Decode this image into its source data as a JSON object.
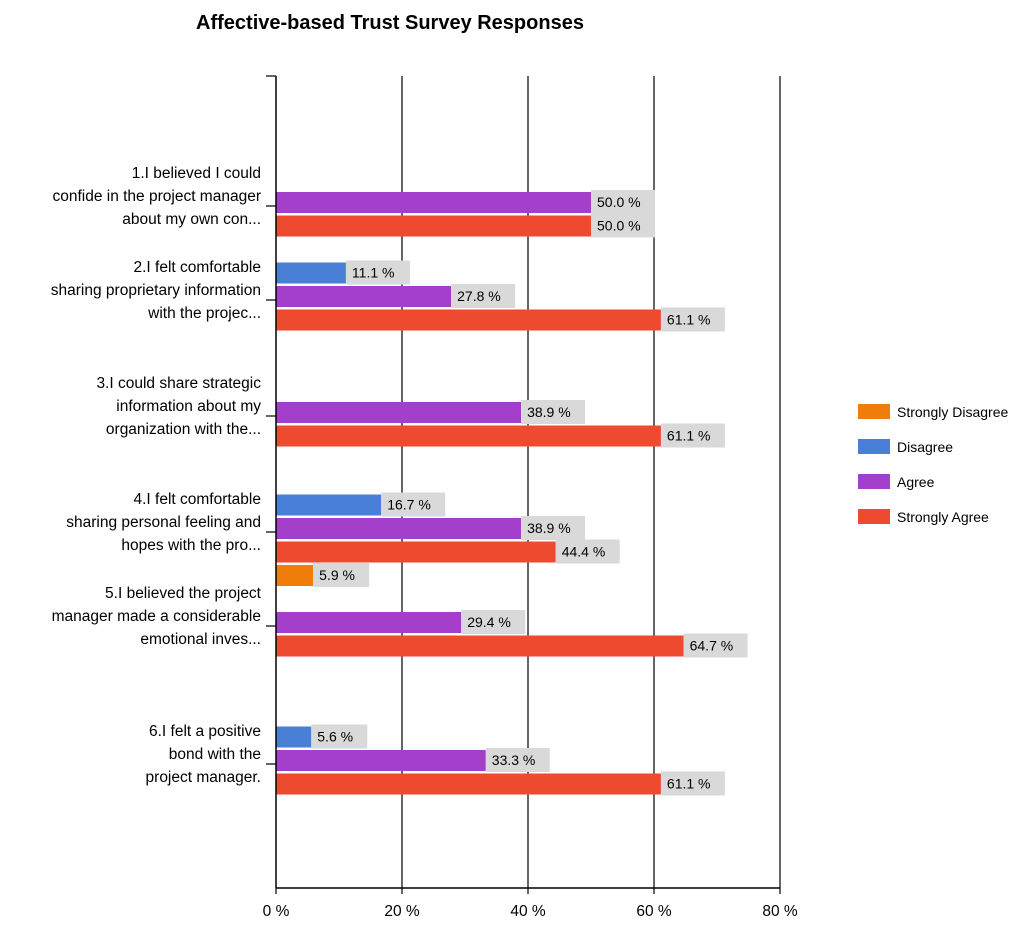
{
  "chart_data": {
    "type": "bar",
    "orientation": "horizontal",
    "title": "Affective-based Trust Survey Responses",
    "xlabel": "",
    "ylabel": "",
    "xlim": [
      0,
      80
    ],
    "x_ticks": [
      "0 %",
      "20 %",
      "40 %",
      "60 %",
      "80 %"
    ],
    "grid": true,
    "legend_position": "right",
    "categories": [
      [
        "1.I believed I could",
        "confide in the project manager",
        "about my own con..."
      ],
      [
        "2.I felt comfortable",
        "sharing proprietary information",
        "with the projec..."
      ],
      [
        "3.I could share strategic",
        "information about my",
        "organization with the..."
      ],
      [
        "4.I felt comfortable",
        "sharing personal feeling and",
        "hopes with the pro..."
      ],
      [
        "5.I believed the project",
        "manager made a considerable",
        "emotional inves..."
      ],
      [
        "6.I felt a positive",
        "bond with the",
        "project manager."
      ]
    ],
    "series": [
      {
        "name": "Strongly Disagree",
        "color": "#f07c0a",
        "values": [
          null,
          null,
          null,
          null,
          5.9,
          null
        ],
        "labels": [
          "",
          "",
          "",
          "",
          "5.9 %",
          ""
        ]
      },
      {
        "name": "Disagree",
        "color": "#4a7fd8",
        "values": [
          null,
          11.1,
          null,
          16.7,
          null,
          5.6
        ],
        "labels": [
          "",
          "11.1 %",
          "",
          "16.7 %",
          "",
          "5.6 %"
        ]
      },
      {
        "name": "Agree",
        "color": "#a43fcc",
        "values": [
          50.0,
          27.8,
          38.9,
          38.9,
          29.4,
          33.3
        ],
        "labels": [
          "50.0 %",
          "27.8 %",
          "38.9 %",
          "38.9 %",
          "29.4 %",
          "33.3 %"
        ]
      },
      {
        "name": "Strongly Agree",
        "color": "#ee4a30",
        "values": [
          50.0,
          61.1,
          61.1,
          44.4,
          64.7,
          61.1
        ],
        "labels": [
          "50.0 %",
          "61.1 %",
          "61.1 %",
          "44.4 %",
          "64.7 %",
          "61.1 %"
        ]
      }
    ]
  }
}
